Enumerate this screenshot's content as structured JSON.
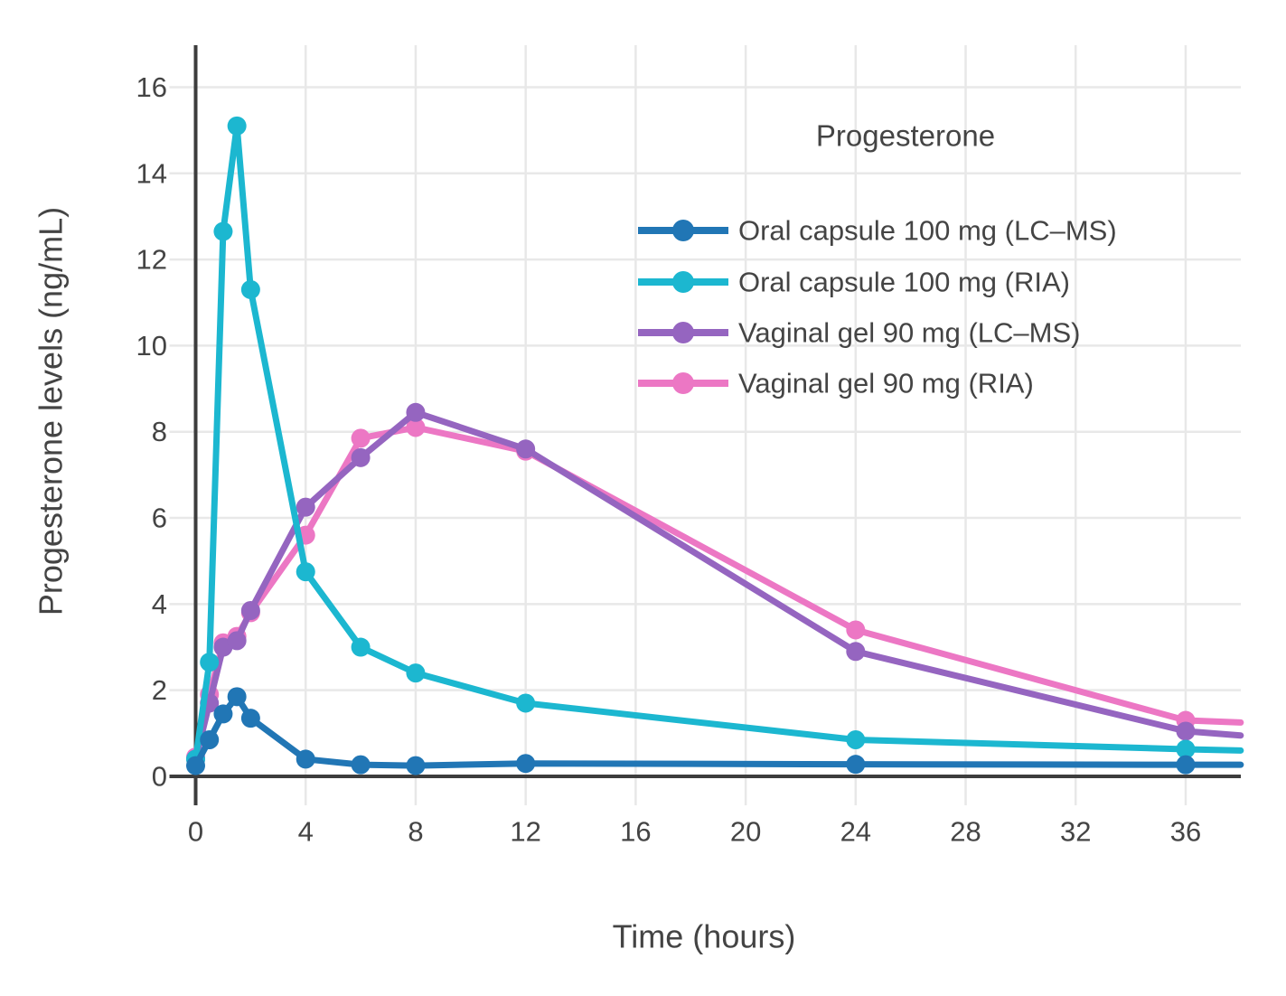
{
  "chart_data": {
    "type": "line",
    "legend_title": "Progesterone",
    "xlabel": "Time (hours)",
    "ylabel": "Progesterone levels (ng/mL)",
    "x_ticks": [
      0,
      4,
      8,
      12,
      16,
      20,
      24,
      28,
      32,
      36
    ],
    "y_ticks": [
      0,
      2,
      4,
      6,
      8,
      10,
      12,
      14,
      16
    ],
    "xlim": [
      0,
      38
    ],
    "ylim": [
      0,
      17
    ],
    "grid": true,
    "legend_position": "upper right",
    "series": [
      {
        "name": "Oral capsule 100 mg (LC–MS)",
        "color": "#2176b5",
        "x": [
          0,
          0.5,
          1,
          1.5,
          2,
          4,
          6,
          8,
          12,
          24,
          36,
          38
        ],
        "y": [
          0.25,
          0.85,
          1.45,
          1.85,
          1.35,
          0.4,
          0.27,
          0.25,
          0.3,
          0.28,
          0.27,
          0.27
        ]
      },
      {
        "name": "Oral capsule 100 mg (RIA)",
        "color": "#1cb7d0",
        "x": [
          0,
          0.5,
          1,
          1.5,
          2,
          4,
          6,
          8,
          12,
          24,
          36,
          38
        ],
        "y": [
          0.4,
          2.65,
          12.65,
          15.1,
          11.3,
          4.75,
          3.0,
          2.4,
          1.7,
          0.85,
          0.63,
          0.6
        ]
      },
      {
        "name": "Vaginal gel 90 mg (LC–MS)",
        "color": "#9565c0",
        "x": [
          0,
          0.5,
          1,
          1.5,
          2,
          4,
          6,
          8,
          12,
          24,
          36,
          38
        ],
        "y": [
          0.4,
          1.7,
          3.0,
          3.15,
          3.85,
          6.25,
          7.4,
          8.45,
          7.6,
          2.9,
          1.05,
          0.95
        ]
      },
      {
        "name": "Vaginal gel 90 mg (RIA)",
        "color": "#ec77c4",
        "x": [
          0,
          0.5,
          1,
          1.5,
          2,
          4,
          6,
          8,
          12,
          24,
          36,
          38
        ],
        "y": [
          0.45,
          1.9,
          3.1,
          3.25,
          3.8,
          5.6,
          7.85,
          8.1,
          7.55,
          3.4,
          1.3,
          1.25
        ]
      }
    ],
    "colors": {
      "axis": "#3d3d3d",
      "grid": "#e8e8e8",
      "text": "#444444",
      "background": "#ffffff"
    }
  }
}
